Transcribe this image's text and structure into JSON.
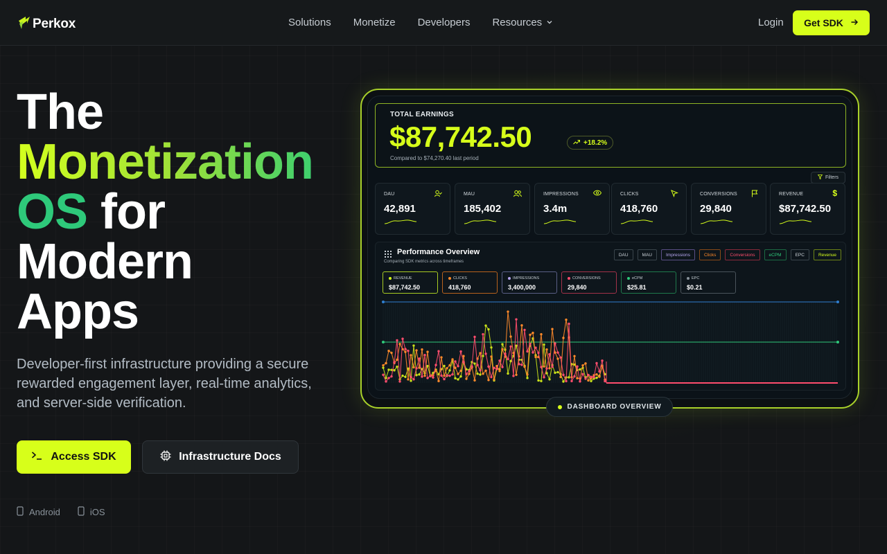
{
  "brand": {
    "name": "Perkox",
    "accent": "#d7ff1a"
  },
  "nav": {
    "links": [
      "Solutions",
      "Monetize",
      "Developers",
      "Resources"
    ],
    "login": "Login",
    "cta": "Get SDK"
  },
  "hero": {
    "line1": "The",
    "line2": "Monetization",
    "line3a": "OS",
    "line3b": "for",
    "line4": "Modern",
    "line5": "Apps",
    "subtitle": "Developer-first infrastructure providing a secure rewarded engagement layer, real-time analytics, and server-side verification.",
    "primary_cta": "Access SDK",
    "secondary_cta": "Infrastructure Docs",
    "platforms": [
      "Android",
      "iOS"
    ]
  },
  "dashboard": {
    "earnings_label": "TOTAL EARNINGS",
    "earnings_value": "$87,742.50",
    "earnings_change": "+18.2%",
    "earnings_compare": "Compared to $74,270.40 last period",
    "filters_label": "Filters",
    "metrics": [
      {
        "label": "DAU",
        "value": "42,891",
        "icon": "user-check-icon"
      },
      {
        "label": "MAU",
        "value": "185,402",
        "icon": "users-icon"
      },
      {
        "label": "IMPRESSIONS",
        "value": "3.4m",
        "icon": "eye-icon"
      },
      {
        "label": "CLICKS",
        "value": "418,760",
        "icon": "cursor-icon"
      },
      {
        "label": "CONVERSIONS",
        "value": "29,840",
        "icon": "flag-icon"
      },
      {
        "label": "REVENUE",
        "value": "$87,742.50",
        "icon": "dollar-icon"
      }
    ],
    "perf_title": "Performance Overview",
    "perf_subtitle": "Comparing SDK metrics across timeframes",
    "series_buttons": [
      {
        "label": "DAU",
        "color": "#cbd2d8"
      },
      {
        "label": "MAU",
        "color": "#cbd2d8"
      },
      {
        "label": "Impressions",
        "color": "#b7a6f0"
      },
      {
        "label": "Clicks",
        "color": "#ff8a2a"
      },
      {
        "label": "Conversions",
        "color": "#ff4d6d"
      },
      {
        "label": "eCPM",
        "color": "#2ec97a"
      },
      {
        "label": "EPC",
        "color": "#cbd2d8"
      },
      {
        "label": "Revenue",
        "color": "#d7ff1a"
      }
    ],
    "mini_stats": [
      {
        "label": "REVENUE",
        "value": "$87,742.50",
        "color": "#d7ff1a"
      },
      {
        "label": "CLICKS",
        "value": "418,760",
        "color": "#ff8a2a"
      },
      {
        "label": "IMPRESSIONS",
        "value": "3,400,000",
        "color": "#b7a6f0"
      },
      {
        "label": "CONVERSIONS",
        "value": "29,840",
        "color": "#ff4d6d"
      },
      {
        "label": "eCPM",
        "value": "$25.81",
        "color": "#2ec97a"
      },
      {
        "label": "EPC",
        "value": "$0.21",
        "color": "#8a939b"
      }
    ],
    "badge": "DASHBOARD OVERVIEW"
  }
}
